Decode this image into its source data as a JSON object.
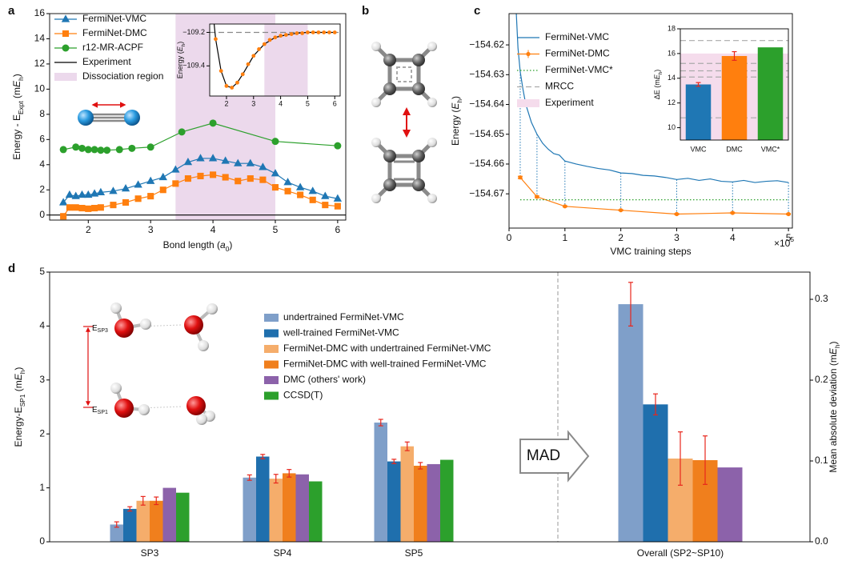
{
  "panel_labels": [
    "a",
    "b",
    "c",
    "d"
  ],
  "chart_data": [
    {
      "type": "line",
      "xlabel": {
        "parts": [
          {
            "text": "Bond length ("
          },
          {
            "text": "a",
            "italic": true
          },
          {
            "text": "0",
            "script": "sub"
          },
          {
            "text": ")"
          }
        ]
      },
      "ylabel": {
        "parts": [
          {
            "text": "Energy - E"
          },
          {
            "text": "Expt",
            "script": "sub"
          },
          {
            "text": " (m"
          },
          {
            "text": "E",
            "italic": true
          },
          {
            "text": "h",
            "script": "sub"
          },
          {
            "text": ")"
          }
        ]
      },
      "xlim": [
        1.38,
        6.13
      ],
      "ylim": [
        -0.4,
        16
      ],
      "xticks": [
        2,
        3,
        4,
        5,
        6
      ],
      "yticks": [
        0,
        2,
        4,
        6,
        8,
        10,
        12,
        14,
        16
      ],
      "series": [
        {
          "name": "FermiNet-VMC",
          "color": "#1f77b4",
          "marker": "triangle",
          "style": "solid",
          "x": [
            1.6,
            1.7,
            1.8,
            1.9,
            2.0,
            2.1,
            2.2,
            2.4,
            2.6,
            2.8,
            3.0,
            3.2,
            3.4,
            3.6,
            3.8,
            4.0,
            4.2,
            4.4,
            4.6,
            4.8,
            5.0,
            5.2,
            5.4,
            5.6,
            5.8,
            6.0
          ],
          "values": [
            1.0,
            1.6,
            1.5,
            1.6,
            1.6,
            1.7,
            1.8,
            1.9,
            2.1,
            2.4,
            2.7,
            3.0,
            3.6,
            4.2,
            4.5,
            4.5,
            4.3,
            4.1,
            4.1,
            3.8,
            3.3,
            2.6,
            2.2,
            1.9,
            1.5,
            1.3
          ]
        },
        {
          "name": "FermiNet-DMC",
          "color": "#ff7f0e",
          "marker": "square",
          "style": "solid",
          "x": [
            1.6,
            1.7,
            1.8,
            1.9,
            2.0,
            2.1,
            2.2,
            2.4,
            2.6,
            2.8,
            3.0,
            3.2,
            3.4,
            3.6,
            3.8,
            4.0,
            4.2,
            4.4,
            4.6,
            4.8,
            5.0,
            5.2,
            5.4,
            5.6,
            5.8,
            6.0
          ],
          "values": [
            -0.1,
            0.6,
            0.6,
            0.55,
            0.5,
            0.55,
            0.6,
            0.8,
            1.0,
            1.3,
            1.5,
            2.0,
            2.5,
            2.9,
            3.1,
            3.2,
            3.0,
            2.7,
            2.9,
            2.8,
            2.2,
            1.9,
            1.6,
            1.2,
            0.8,
            0.7
          ]
        },
        {
          "name": "r12-MR-ACPF",
          "color": "#2ca02c",
          "marker": "circle",
          "style": "solid",
          "x": [
            1.6,
            1.8,
            1.9,
            2.0,
            2.1,
            2.2,
            2.3,
            2.5,
            2.7,
            3.0,
            3.5,
            4.0,
            5.0,
            6.0
          ],
          "values": [
            5.2,
            5.4,
            5.3,
            5.2,
            5.2,
            5.15,
            5.15,
            5.2,
            5.3,
            5.4,
            6.6,
            7.3,
            5.85,
            5.5
          ]
        }
      ],
      "hlines": [
        {
          "name": "Experiment",
          "color": "#000000",
          "style": "solid",
          "values": [
            0
          ]
        }
      ],
      "regions": [
        {
          "name": "Dissociation region",
          "color": "#ecd9ec",
          "range": [
            3.4,
            5.0
          ]
        }
      ]
    },
    {
      "type": "line",
      "ylabel": {
        "parts": [
          {
            "text": "Energy ("
          },
          {
            "text": "E",
            "italic": true
          },
          {
            "text": "h",
            "script": "sub"
          },
          {
            "text": ")"
          }
        ]
      },
      "xlim": [
        1.38,
        6.2
      ],
      "ylim": [
        -109.58,
        -109.15
      ],
      "xticks": [
        2,
        3,
        4,
        5,
        6
      ],
      "yticks": [
        {
          "value": -109.2,
          "label": "−109.2"
        },
        {
          "value": -109.4,
          "label": "−109.4"
        }
      ],
      "series": [
        {
          "color": "#000000",
          "style": "solid",
          "x": [
            1.5,
            1.6,
            1.8,
            2.0,
            2.2,
            2.4,
            2.6,
            3.0,
            3.4,
            3.8,
            4.2,
            4.6,
            5.0,
            6.0
          ],
          "values": [
            -109.08,
            -109.24,
            -109.43,
            -109.52,
            -109.53,
            -109.5,
            -109.45,
            -109.34,
            -109.27,
            -109.23,
            -109.215,
            -109.205,
            -109.2,
            -109.2
          ]
        },
        {
          "color": "#ff7f0e",
          "marker": "circle",
          "line": false,
          "x": [
            1.6,
            1.8,
            2.0,
            2.2,
            2.4,
            2.6,
            2.8,
            3.0,
            3.2,
            3.4,
            3.6,
            3.8,
            4.0,
            4.2,
            4.4,
            4.6,
            4.8,
            5.0,
            5.2,
            5.4,
            5.6,
            5.8,
            6.0
          ],
          "values": [
            -109.24,
            -109.43,
            -109.52,
            -109.53,
            -109.5,
            -109.45,
            -109.39,
            -109.34,
            -109.3,
            -109.27,
            -109.245,
            -109.23,
            -109.22,
            -109.215,
            -109.21,
            -109.205,
            -109.205,
            -109.2,
            -109.2,
            -109.2,
            -109.2,
            -109.2,
            -109.2
          ]
        }
      ],
      "hlines": [
        {
          "color": "#888888",
          "style": "dashed",
          "values": [
            -109.2
          ]
        }
      ],
      "regions": [
        {
          "color": "#ecd9ec",
          "range": [
            3.4,
            5.0
          ]
        }
      ]
    },
    {
      "type": "line",
      "xlabel": {
        "parts": [
          {
            "text": "VMC training steps"
          }
        ]
      },
      "ylabel": {
        "parts": [
          {
            "text": "Energy ("
          },
          {
            "text": "E",
            "italic": true
          },
          {
            "text": "h",
            "script": "sub"
          },
          {
            "text": ")"
          }
        ]
      },
      "xoffset": {
        "parts": [
          {
            "text": "×10"
          },
          {
            "text": "5",
            "script": "sup"
          }
        ]
      },
      "xlim": [
        0,
        5.07
      ],
      "ylim": [
        -154.6815,
        -154.6095
      ],
      "xticks": [
        0,
        1,
        2,
        3,
        4,
        5
      ],
      "yticks": [
        {
          "value": -154.62,
          "label": "−154.62"
        },
        {
          "value": -154.63,
          "label": "−154.63"
        },
        {
          "value": -154.64,
          "label": "−154.64"
        },
        {
          "value": -154.65,
          "label": "−154.65"
        },
        {
          "value": -154.66,
          "label": "−154.66"
        },
        {
          "value": -154.67,
          "label": "−154.67"
        }
      ],
      "series": [
        {
          "name": "FermiNet-VMC",
          "color": "#1f77b4",
          "style": "solid",
          "x": [
            0.13,
            0.16,
            0.2,
            0.25,
            0.3,
            0.35,
            0.4,
            0.5,
            0.6,
            0.7,
            0.8,
            0.9,
            1.0,
            1.2,
            1.4,
            1.6,
            1.8,
            2.0,
            2.2,
            2.4,
            2.6,
            2.8,
            3.0,
            3.2,
            3.4,
            3.6,
            3.8,
            4.0,
            4.2,
            4.4,
            4.6,
            4.8,
            5.0
          ],
          "values": [
            -154.6095,
            -154.621,
            -154.629,
            -154.635,
            -154.64,
            -154.643,
            -154.646,
            -154.65,
            -154.653,
            -154.655,
            -154.6565,
            -154.657,
            -154.659,
            -154.66,
            -154.6608,
            -154.6615,
            -154.662,
            -154.663,
            -154.6632,
            -154.6638,
            -154.664,
            -154.6645,
            -154.6652,
            -154.6648,
            -154.6655,
            -154.665,
            -154.6658,
            -154.666,
            -154.6655,
            -154.6662,
            -154.6658,
            -154.6656,
            -154.6662
          ]
        },
        {
          "name": "FermiNet-DMC",
          "color": "#ff7f0e",
          "marker": "circle",
          "style": "solid",
          "x": [
            0.2,
            0.5,
            1,
            2,
            3,
            4,
            5
          ],
          "values": [
            -154.6645,
            -154.671,
            -154.6742,
            -154.6755,
            -154.6768,
            -154.6764,
            -154.6768
          ],
          "errors": [
            0.0004,
            0.0003,
            0.0002,
            0.0002,
            0.0002,
            0.0002,
            0.0002
          ]
        },
        {
          "name": "FermiNet-VMC*",
          "color": "#2ca02c",
          "style": "dotted",
          "x": [
            0.2,
            5
          ],
          "values": [
            -154.672,
            -154.672
          ]
        }
      ]
    },
    {
      "type": "bar",
      "ylabel": {
        "parts": [
          {
            "text": "ΔE (m"
          },
          {
            "text": "E",
            "italic": true
          },
          {
            "text": "h",
            "script": "sub"
          },
          {
            "text": ")"
          }
        ]
      },
      "categories": [
        "VMC",
        "DMC",
        "VMC*"
      ],
      "values": [
        13.5,
        15.8,
        16.5
      ],
      "errors": [
        0.15,
        0.35,
        null
      ],
      "colors": [
        "#1f77b4",
        "#ff7f0e",
        "#2ca02c"
      ],
      "error_color": "#e8261c",
      "ylim": [
        9,
        18
      ],
      "yticks": [
        10,
        12,
        14,
        16,
        18
      ],
      "hlines": [
        {
          "name": "MRCC",
          "color": "#aaaaaa",
          "style": "dashed",
          "values": [
            17.05,
            15.2,
            14.6,
            14.1,
            10.8
          ]
        }
      ],
      "regions": [
        {
          "name": "Experiment",
          "color": "#f5dcec",
          "range": [
            9,
            16
          ]
        }
      ]
    },
    {
      "type": "grouped_bar",
      "ylabel": {
        "parts": [
          {
            "text": "Energy-E"
          },
          {
            "text": "SP1",
            "script": "sub"
          },
          {
            "text": " (m"
          },
          {
            "text": "E",
            "italic": true
          },
          {
            "text": "h",
            "script": "sub"
          },
          {
            "text": ")"
          }
        ]
      },
      "y2label": {
        "parts": [
          {
            "text": "Mean absolute deviation (m"
          },
          {
            "text": "E",
            "italic": true
          },
          {
            "text": "h",
            "script": "sub"
          },
          {
            "text": ")"
          }
        ]
      },
      "categories": [
        "SP3",
        "SP4",
        "SP5"
      ],
      "ylim": [
        0,
        5
      ],
      "yticks": [
        0,
        1,
        2,
        3,
        4,
        5
      ],
      "y2lim": [
        0,
        0.3337
      ],
      "y2ticks": [
        {
          "value": 0,
          "label": "0.0"
        },
        0.1,
        0.2,
        0.3
      ],
      "error_color": "#e8261c",
      "series": [
        {
          "name": "undertrained FermiNet-VMC",
          "color": "#7f9fc9",
          "values": [
            0.32,
            1.19,
            2.21
          ],
          "errors": [
            0.05,
            0.05,
            0.06
          ]
        },
        {
          "name": "well-trained FermiNet-VMC",
          "color": "#1f6fad",
          "values": [
            0.61,
            1.58,
            1.49
          ],
          "errors": [
            0.04,
            0.04,
            0.04
          ]
        },
        {
          "name": "FermiNet-DMC with undertrained FermiNet-VMC",
          "color": "#f5ad6b",
          "values": [
            0.76,
            1.17,
            1.77
          ],
          "errors": [
            0.08,
            0.08,
            0.08
          ]
        },
        {
          "name": "FermiNet-DMC with well-trained FermiNet-VMC",
          "color": "#f07f1d",
          "values": [
            0.76,
            1.27,
            1.41
          ],
          "errors": [
            0.07,
            0.07,
            0.06
          ]
        },
        {
          "name": "DMC (others' work)",
          "color": "#8c62aa",
          "values": [
            1.0,
            1.25,
            1.44
          ]
        },
        {
          "name": "CCSD(T)",
          "color": "#2ca02c",
          "values": [
            0.91,
            1.12,
            1.52
          ]
        }
      ],
      "mad": {
        "category": "Overall (SP2~SP10)",
        "axis": "y2",
        "values": [
          0.294,
          0.17,
          0.103,
          0.101,
          0.092
        ],
        "errors": [
          0.027,
          0.013,
          0.033,
          0.03,
          null
        ]
      },
      "annotations": {
        "mad_arrow": "MAD",
        "upper": {
          "parts": [
            {
              "text": "E"
            },
            {
              "text": "SP3",
              "script": "sub"
            }
          ]
        },
        "lower": {
          "parts": [
            {
              "text": "E"
            },
            {
              "text": "SP1",
              "script": "sub"
            }
          ]
        }
      }
    }
  ]
}
